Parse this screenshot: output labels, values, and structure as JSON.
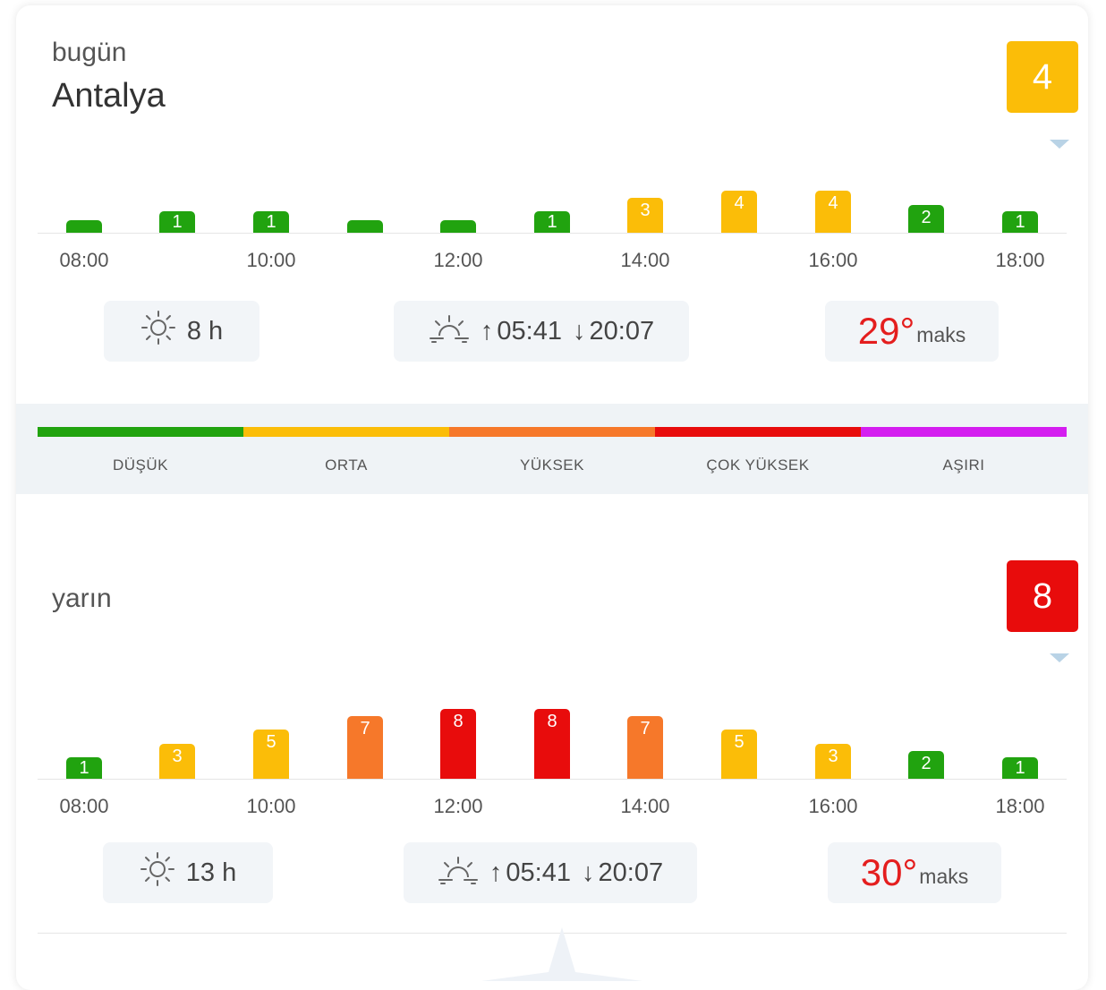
{
  "today": {
    "sub_label": "bugün",
    "city": "Antalya",
    "uv_index": "4",
    "uv_color": "#fbbd08",
    "bars": [
      {
        "value": "",
        "level": 0,
        "color": "#21a30f"
      },
      {
        "value": "1",
        "level": 1,
        "color": "#21a30f"
      },
      {
        "value": "1",
        "level": 1,
        "color": "#21a30f"
      },
      {
        "value": "",
        "level": 0,
        "color": "#21a30f"
      },
      {
        "value": "",
        "level": 0,
        "color": "#21a30f"
      },
      {
        "value": "1",
        "level": 1,
        "color": "#21a30f"
      },
      {
        "value": "3",
        "level": 3,
        "color": "#fbbd08"
      },
      {
        "value": "4",
        "level": 4,
        "color": "#fbbd08"
      },
      {
        "value": "4",
        "level": 4,
        "color": "#fbbd08"
      },
      {
        "value": "2",
        "level": 2,
        "color": "#21a30f"
      },
      {
        "value": "1",
        "level": 1,
        "color": "#21a30f"
      }
    ],
    "ticks": [
      "08:00",
      "10:00",
      "12:00",
      "14:00",
      "16:00",
      "18:00"
    ],
    "sun_hours": "8 h",
    "sunrise": "05:41",
    "sunset": "20:07",
    "max_temp": "29",
    "degree": "°",
    "max_label": "maks"
  },
  "legend": [
    {
      "label": "DÜŞÜK",
      "color": "#21a30f"
    },
    {
      "label": "ORTA",
      "color": "#fbbd08"
    },
    {
      "label": "YÜKSEK",
      "color": "#f6782a"
    },
    {
      "label": "ÇOK YÜKSEK",
      "color": "#e80c0c"
    },
    {
      "label": "AŞIRI",
      "color": "#d41ef0"
    }
  ],
  "tomorrow": {
    "sub_label": "yarın",
    "uv_index": "8",
    "uv_color": "#e80c0c",
    "bars": [
      {
        "value": "1",
        "level": 1,
        "color": "#21a30f"
      },
      {
        "value": "3",
        "level": 3,
        "color": "#fbbd08"
      },
      {
        "value": "5",
        "level": 5,
        "color": "#fbbd08"
      },
      {
        "value": "7",
        "level": 7,
        "color": "#f6782a"
      },
      {
        "value": "8",
        "level": 8,
        "color": "#e80c0c"
      },
      {
        "value": "8",
        "level": 8,
        "color": "#e80c0c"
      },
      {
        "value": "7",
        "level": 7,
        "color": "#f6782a"
      },
      {
        "value": "5",
        "level": 5,
        "color": "#fbbd08"
      },
      {
        "value": "3",
        "level": 3,
        "color": "#fbbd08"
      },
      {
        "value": "2",
        "level": 2,
        "color": "#21a30f"
      },
      {
        "value": "1",
        "level": 1,
        "color": "#21a30f"
      }
    ],
    "ticks": [
      "08:00",
      "10:00",
      "12:00",
      "14:00",
      "16:00",
      "18:00"
    ],
    "sun_hours": "13 h",
    "sunrise": "05:41",
    "sunset": "20:07",
    "max_temp": "30",
    "degree": "°",
    "max_label": "maks"
  },
  "icons": {
    "sun": "sun-icon",
    "sunrise": "sunrise-icon",
    "arrow_up": "↑",
    "arrow_down": "↓"
  }
}
